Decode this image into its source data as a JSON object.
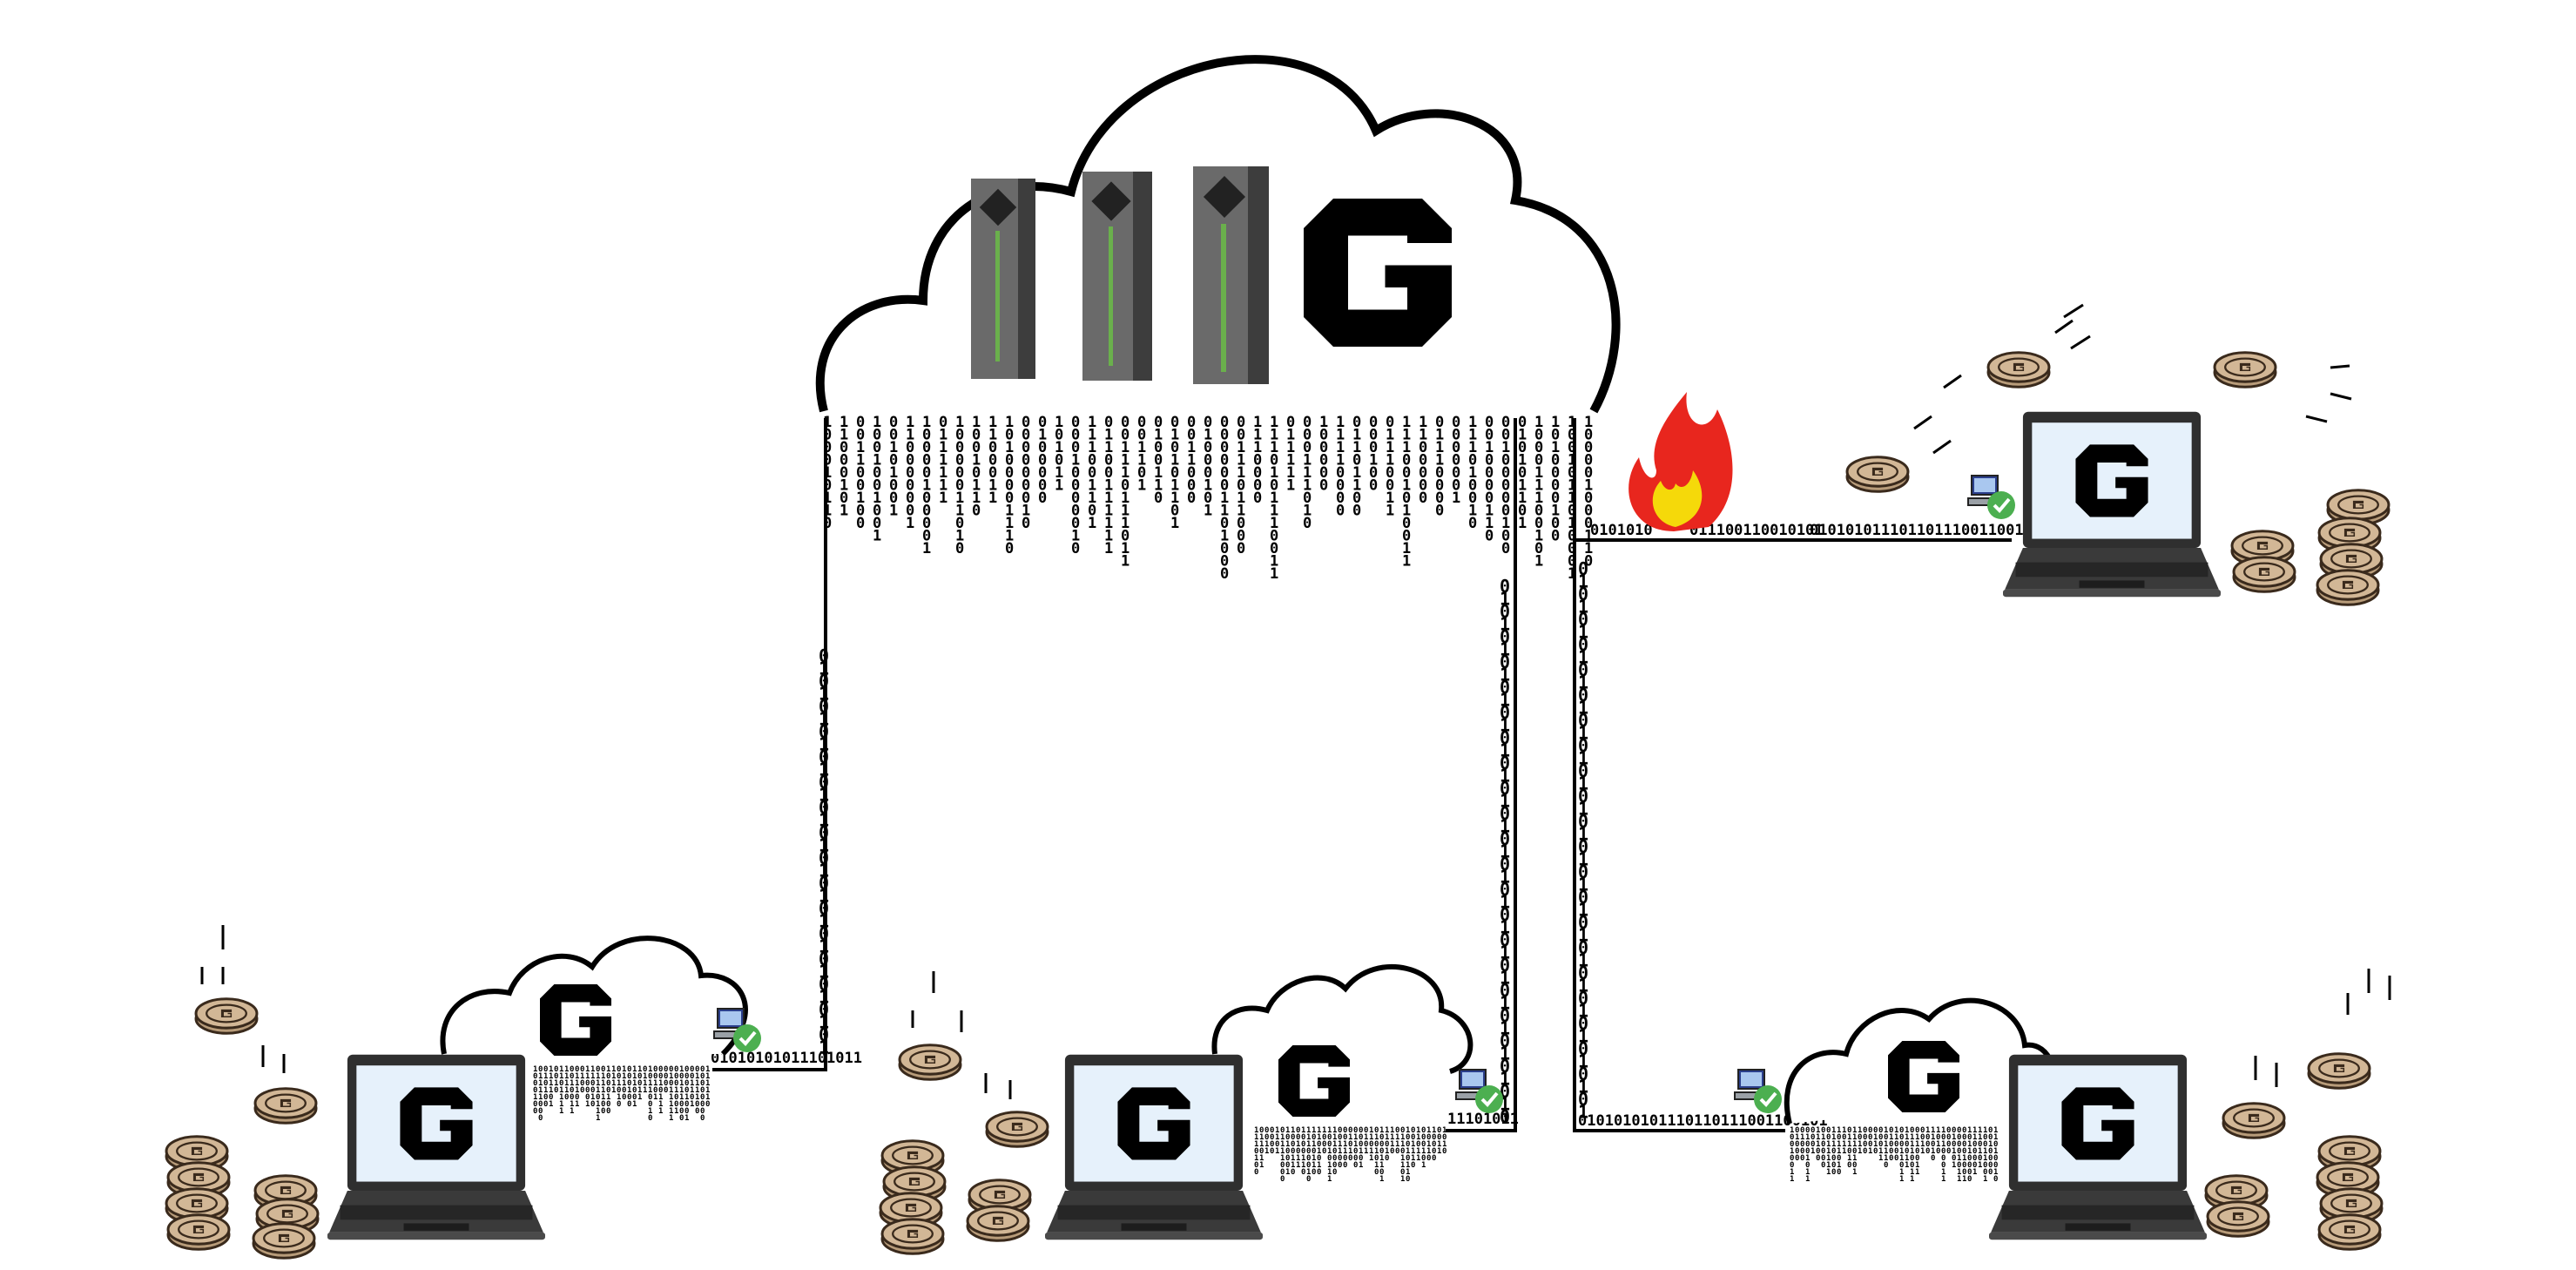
{
  "logo_letter": "G",
  "colors": {
    "cloud_outline": "#000000",
    "cloud_fill": "#ffffff",
    "screen": "#e6f1fb",
    "laptop_body": "#2f2f2f",
    "coin_fill": "#d2b796",
    "coin_outline": "#3a2a1c",
    "server_gray": "#555555",
    "server_led": "#6ab04c",
    "flame_outer": "#e8261e",
    "flame_inner": "#f5d90a",
    "check_green": "#4caf50"
  },
  "icons": [
    "cloud-icon",
    "server-rack-icon",
    "laptop-icon",
    "coin-icon",
    "flame-icon",
    "computer-check-icon"
  ],
  "main_cloud": {
    "binary_stream_top": "1010010110101001"
  },
  "links": {
    "left_laptop": "01010101011101011",
    "center_laptop": "11101011",
    "right_top_laptop_a": "0101010",
    "right_top_laptop_b": "011100110010101",
    "right_top_laptop_c": "010101011101101110011001",
    "right_bottom_laptop": "0101010101110110111001100101"
  },
  "vertical_stream": "0101010101010101010101010101010101"
}
